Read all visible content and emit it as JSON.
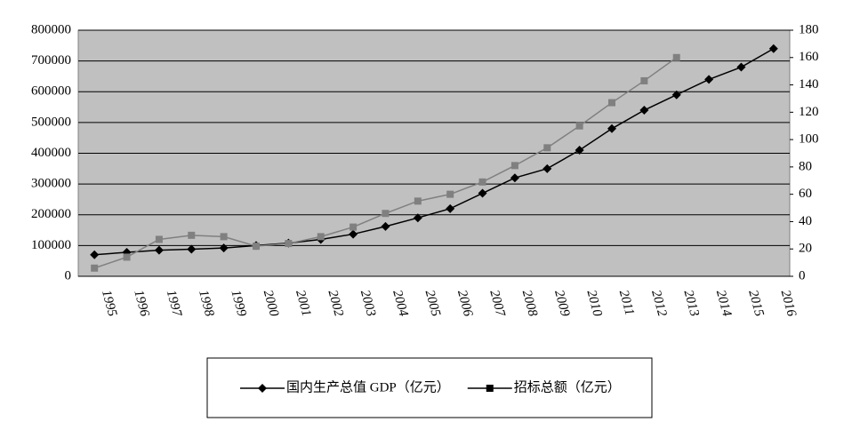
{
  "chart_data": {
    "type": "line",
    "categories": [
      "1995",
      "1996",
      "1997",
      "1998",
      "1999",
      "2000",
      "2001",
      "2002",
      "2003",
      "2004",
      "2005",
      "2006",
      "2007",
      "2008",
      "2009",
      "2010",
      "2011",
      "2012",
      "2013",
      "2014",
      "2015",
      "2016"
    ],
    "series": [
      {
        "name": "国内生产总值 GDP（亿元）",
        "color": "#000000",
        "marker": "diamond",
        "values": [
          70000,
          78000,
          85000,
          88000,
          92000,
          100000,
          108000,
          120000,
          137000,
          162000,
          190000,
          220000,
          270000,
          320000,
          350000,
          410000,
          480000,
          540000,
          590000,
          640000,
          680000,
          740000
        ]
      },
      {
        "name": "招标总额（亿元）",
        "color": "#808080",
        "marker": "square",
        "axis": "y2",
        "values": [
          6,
          14,
          27,
          30,
          29,
          22,
          24,
          29,
          36,
          46,
          55,
          60,
          69,
          81,
          94,
          110,
          127,
          143,
          160,
          null,
          null,
          null
        ]
      }
    ],
    "ylim": [
      0,
      800000
    ],
    "yticks": [
      0,
      100000,
      200000,
      300000,
      400000,
      500000,
      600000,
      700000,
      800000
    ],
    "y2lim": [
      0,
      180
    ],
    "y2ticks": [
      0,
      20,
      40,
      60,
      80,
      100,
      120,
      140,
      160,
      180
    ],
    "grid": true,
    "legend": "bottom"
  }
}
